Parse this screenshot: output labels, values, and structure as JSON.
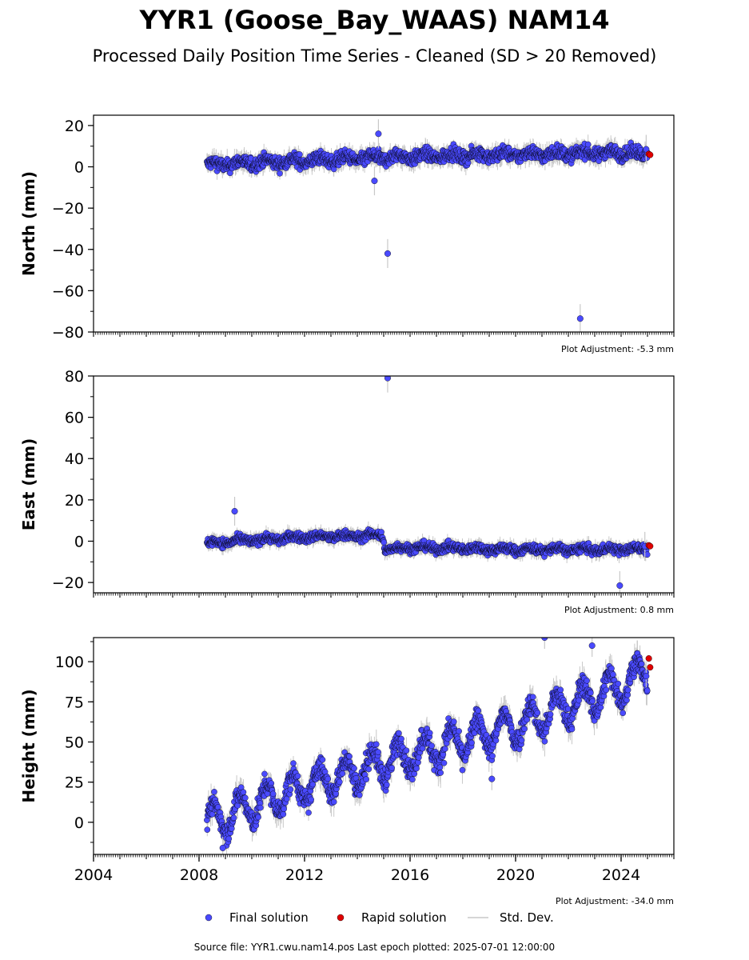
{
  "title": "YYR1 (Goose_Bay_WAAS) NAM14",
  "subtitle": "Processed Daily Position Time Series - Cleaned (SD > 20 Removed)",
  "footer": "Source file: YYR1.cwu.nam14.pos  Last epoch plotted: 2025-07-01 12:00:00",
  "legend": {
    "final": "Final solution",
    "rapid": "Rapid solution",
    "std": "Std. Dev."
  },
  "colors": {
    "final": "#4a4aff",
    "rapid": "#e00000",
    "std": "#c8c8c8",
    "edge": "#000000"
  },
  "chart_data": [
    {
      "type": "scatter",
      "ylabel": "North (mm)",
      "xlim": [
        2004,
        2026
      ],
      "ylim": [
        -80,
        25
      ],
      "yticks": [
        20,
        0,
        -20,
        -40,
        -60,
        -80
      ],
      "ytick_labels": [
        "20",
        "0",
        "−20",
        "−40",
        "−60",
        "−80"
      ],
      "adjustment": "Plot Adjustment: -5.3 mm",
      "trend": [
        [
          2008.3,
          1
        ],
        [
          2012,
          3
        ],
        [
          2016,
          5
        ],
        [
          2020,
          6
        ],
        [
          2024,
          7
        ],
        [
          2025.0,
          6
        ]
      ],
      "noise_sd": 2.2,
      "seasonal_amp": 1.2,
      "series": [
        {
          "name": "Final solution",
          "points": [
            [
              2014.65,
              -6.8
            ],
            [
              2014.8,
              16
            ],
            [
              2015.15,
              -42
            ],
            [
              2022.45,
              -73.5
            ],
            [
              2024.95,
              8.5
            ]
          ]
        },
        {
          "name": "Rapid solution",
          "points": [
            [
              2025.05,
              6.2
            ],
            [
              2025.1,
              5.8
            ]
          ]
        }
      ]
    },
    {
      "type": "scatter",
      "ylabel": "East (mm)",
      "xlim": [
        2004,
        2026
      ],
      "ylim": [
        -25,
        80
      ],
      "yticks": [
        80,
        60,
        40,
        20,
        0,
        -20
      ],
      "ytick_labels": [
        "80",
        "60",
        "40",
        "20",
        "0",
        "−20"
      ],
      "adjustment": "Plot Adjustment: 0.8 mm",
      "trend": [
        [
          2008.3,
          -1
        ],
        [
          2010,
          0.5
        ],
        [
          2012,
          2
        ],
        [
          2014,
          2.5
        ],
        [
          2014.95,
          3
        ],
        [
          2015.05,
          -4
        ],
        [
          2016,
          -3
        ],
        [
          2020,
          -4
        ],
        [
          2024,
          -4
        ],
        [
          2025.0,
          -3.5
        ]
      ],
      "noise_sd": 1.5,
      "seasonal_amp": 0.8,
      "series": [
        {
          "name": "Final solution",
          "points": [
            [
              2009.35,
              14.5
            ],
            [
              2015.15,
              79
            ],
            [
              2023.95,
              -21.5
            ],
            [
              2024.9,
              -2.5
            ]
          ]
        },
        {
          "name": "Rapid solution",
          "points": [
            [
              2025.05,
              -2.0
            ],
            [
              2025.1,
              -2.4
            ]
          ]
        }
      ]
    },
    {
      "type": "scatter",
      "ylabel": "Height (mm)",
      "xlabel": "",
      "xlim": [
        2004,
        2026
      ],
      "ylim": [
        -20,
        115
      ],
      "yticks": [
        100,
        75,
        50,
        25,
        0
      ],
      "ytick_labels": [
        "100",
        "75",
        "50",
        "25",
        "0"
      ],
      "xticks": [
        2004,
        2008,
        2012,
        2016,
        2020,
        2024
      ],
      "xtick_labels": [
        "2004",
        "2008",
        "2012",
        "2016",
        "2020",
        "2024"
      ],
      "adjustment": "Plot Adjustment: -34.0 mm",
      "trend": [
        [
          2008.3,
          0
        ],
        [
          2012,
          22
        ],
        [
          2016,
          42
        ],
        [
          2020,
          60
        ],
        [
          2024,
          85
        ],
        [
          2025.0,
          95
        ]
      ],
      "noise_sd": 5,
      "seasonal_amp": 10,
      "series": [
        {
          "name": "Final solution",
          "points": [
            [
              2021.1,
              115
            ],
            [
              2022.9,
              110
            ],
            [
              2019.1,
              27
            ],
            [
              2008.9,
              -16
            ],
            [
              2024.95,
              91
            ]
          ]
        },
        {
          "name": "Rapid solution",
          "points": [
            [
              2025.05,
              102
            ],
            [
              2025.1,
              96.5
            ]
          ]
        }
      ]
    }
  ]
}
